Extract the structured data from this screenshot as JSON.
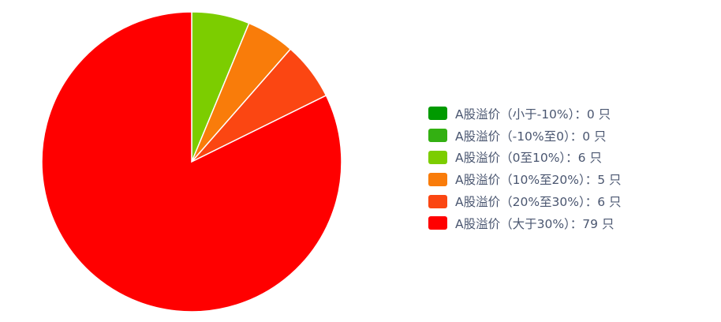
{
  "chart_data": {
    "type": "pie",
    "start_angle": "top, clockwise",
    "slices": [
      {
        "label": "A股溢价（小于-10%）：0 只",
        "value": 0,
        "color": "#009a00"
      },
      {
        "label": "A股溢价（-10%至0）：0 只",
        "value": 0,
        "color": "#33b012"
      },
      {
        "label": "A股溢价（0至10%）：6 只",
        "value": 6,
        "color": "#7ccd00"
      },
      {
        "label": "A股溢价（10%至20%）：5 只",
        "value": 5,
        "color": "#f97c0a"
      },
      {
        "label": "A股溢价（20%至30%）：6 只",
        "value": 6,
        "color": "#fb4612"
      },
      {
        "label": "A股溢价（大于30%）：79 只",
        "value": 79,
        "color": "#ff0000"
      }
    ],
    "legend_position": "right"
  }
}
